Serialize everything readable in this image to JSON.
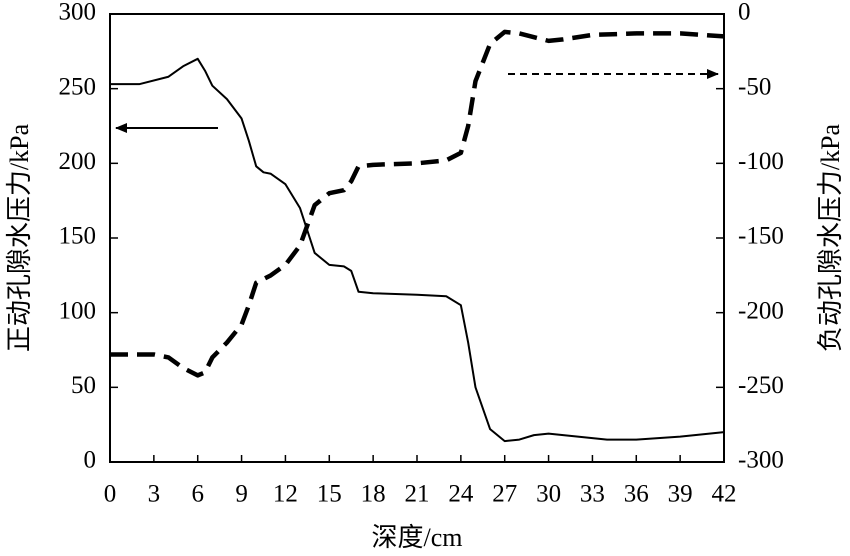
{
  "chart_data": {
    "type": "line",
    "x_label": "深度/cm",
    "y_label": "正动孔隙水压力/kPa",
    "y2_label": "负动孔隙水压力/kPa",
    "xlim": [
      0,
      42
    ],
    "xticks": [
      0,
      3,
      6,
      9,
      12,
      15,
      18,
      21,
      24,
      27,
      30,
      33,
      36,
      39,
      42
    ],
    "ylim": [
      0,
      300
    ],
    "yticks": [
      0,
      50,
      100,
      150,
      200,
      250,
      300
    ],
    "y2lim": [
      -300,
      0
    ],
    "y2ticks": [
      -300,
      -250,
      -200,
      -150,
      -100,
      -50,
      0
    ],
    "series": [
      {
        "color": "#000000",
        "dashed": false,
        "axis": "y",
        "x": [
          0,
          2,
          4,
          5,
          6,
          6.5,
          7,
          8,
          9,
          9.5,
          10,
          10.5,
          11,
          12,
          13,
          14,
          15,
          16,
          16.5,
          17,
          18,
          21,
          23,
          24,
          24.5,
          25,
          26,
          27,
          28,
          29,
          30,
          32,
          34,
          36,
          39,
          42
        ],
        "values": [
          253,
          253,
          258,
          265,
          270,
          262,
          252,
          243,
          230,
          215,
          198,
          194,
          193,
          186,
          170,
          140,
          132,
          131,
          128,
          114,
          113,
          112,
          111,
          105,
          80,
          50,
          22,
          14,
          15,
          18,
          19,
          17,
          15,
          15,
          17,
          20
        ]
      },
      {
        "color": "#000000",
        "dashed": true,
        "axis": "y2",
        "x": [
          0,
          3,
          4,
          5,
          6,
          6.5,
          7,
          8,
          9,
          9.5,
          10,
          11,
          12,
          13,
          14,
          15,
          16,
          16.5,
          17,
          18,
          21,
          23,
          24,
          24.5,
          25,
          26,
          27,
          28,
          30,
          31,
          33,
          36,
          39,
          42
        ],
        "values": [
          -228,
          -228,
          -230,
          -237,
          -242,
          -240,
          -230,
          -220,
          -208,
          -195,
          -180,
          -175,
          -168,
          -155,
          -128,
          -120,
          -118,
          -112,
          -102,
          -101,
          -100,
          -98,
          -93,
          -75,
          -45,
          -20,
          -12,
          -13,
          -18,
          -17,
          -14,
          -13,
          -13,
          -15
        ]
      }
    ]
  }
}
